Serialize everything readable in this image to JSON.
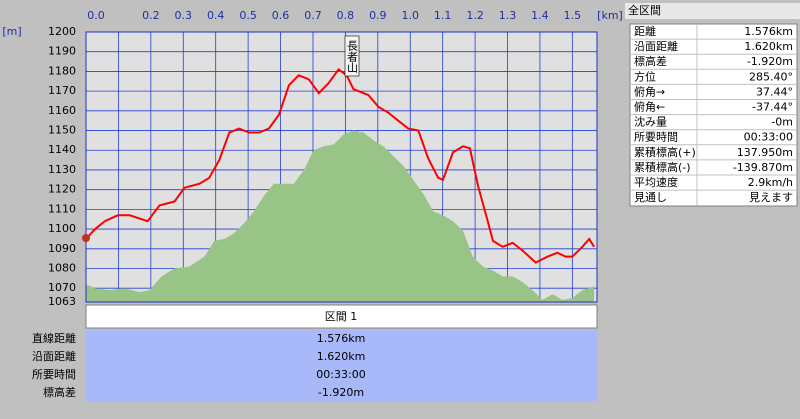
{
  "chart_data": {
    "type": "line",
    "xlabel": "[km]",
    "ylabel": "[m]",
    "annotation": "長者山",
    "xlim": [
      0,
      1.576
    ],
    "ylim": [
      1063,
      1200
    ],
    "grid": true,
    "xticks": [
      {
        "value": 0,
        "label": "0.0"
      },
      {
        "value": 0.1,
        "label": null
      },
      0.2,
      0.3,
      0.4,
      0.5,
      0.6,
      0.7,
      0.8,
      0.9,
      {
        "value": 1,
        "label": "1.0"
      },
      1.1,
      1.2,
      1.3,
      1.4,
      1.5
    ],
    "yticks": [
      1063,
      1070,
      1080,
      1090,
      1100,
      1110,
      1120,
      1130,
      1140,
      1150,
      1160,
      1170,
      1180,
      1190,
      1200
    ],
    "series": [
      {
        "type": "area",
        "color": "#98c488",
        "x": [
          0,
          0.028,
          0.074,
          0.12,
          0.166,
          0.196,
          0.233,
          0.273,
          0.319,
          0.365,
          0.396,
          0.427,
          0.457,
          0.488,
          0.518,
          0.549,
          0.58,
          0.61,
          0.641,
          0.672,
          0.702,
          0.733,
          0.764,
          0.794,
          0.825,
          0.856,
          0.887,
          0.917,
          0.948,
          0.979,
          1.009,
          1.04,
          1.071,
          1.101,
          1.132,
          1.163,
          1.193,
          1.224,
          1.255,
          1.285,
          1.316,
          1.347,
          1.377,
          1.408,
          1.439,
          1.469,
          1.5,
          1.531,
          1.567
        ],
        "values": [
          1072,
          1070,
          1069,
          1070,
          1068,
          1069,
          1076,
          1080,
          1081,
          1086,
          1094,
          1095,
          1098,
          1103,
          1109,
          1117,
          1123,
          1123,
          1123,
          1130,
          1140,
          1142,
          1143,
          1148,
          1150,
          1149,
          1145,
          1142,
          1137,
          1132,
          1125,
          1118,
          1109,
          1107,
          1104,
          1099,
          1086,
          1081,
          1079,
          1076,
          1076,
          1073,
          1069,
          1064,
          1067,
          1064,
          1065,
          1069,
          1071
        ]
      },
      {
        "type": "line",
        "color": "#ff0000",
        "x": [
          0,
          0.028,
          0.058,
          0.098,
          0.135,
          0.19,
          0.227,
          0.273,
          0.304,
          0.35,
          0.38,
          0.411,
          0.442,
          0.472,
          0.503,
          0.534,
          0.564,
          0.595,
          0.626,
          0.656,
          0.687,
          0.718,
          0.748,
          0.779,
          0.804,
          0.825,
          0.871,
          0.902,
          0.933,
          0.963,
          0.994,
          1.025,
          1.055,
          1.086,
          1.101,
          1.132,
          1.163,
          1.184,
          1.209,
          1.239,
          1.255,
          1.285,
          1.316,
          1.347,
          1.387,
          1.423,
          1.454,
          1.479,
          1.5,
          1.531,
          1.552,
          1.567
        ],
        "values": [
          1095,
          1100,
          1104,
          1107,
          1107,
          1104,
          1112,
          1114,
          1121,
          1123,
          1126,
          1135,
          1149,
          1151,
          1149,
          1149,
          1151,
          1158,
          1173,
          1178,
          1176,
          1169,
          1174,
          1181,
          1178,
          1171,
          1168,
          1162,
          1159,
          1155,
          1151,
          1150,
          1136,
          1126,
          1125,
          1139,
          1142,
          1141,
          1122,
          1104,
          1094,
          1091,
          1093,
          1089,
          1083,
          1086,
          1088,
          1086,
          1086,
          1091,
          1095,
          1091
        ]
      }
    ]
  },
  "section": {
    "title": "区間 1",
    "rows": [
      {
        "label": "直線距離",
        "value": "1.576km"
      },
      {
        "label": "沿面距離",
        "value": "1.620km"
      },
      {
        "label": "所要時間",
        "value": "00:33:00"
      },
      {
        "label": "標高差",
        "value": "-1.920m"
      }
    ]
  },
  "summary": {
    "title": "全区間",
    "rows": [
      [
        "距離",
        "1.576km"
      ],
      [
        "沿面距離",
        "1.620km"
      ],
      [
        "標高差",
        "-1.920m"
      ],
      [
        "方位",
        "285.40°"
      ],
      [
        "俯角→",
        "37.44°"
      ],
      [
        "俯角←",
        "-37.44°"
      ],
      [
        "沈み量",
        "-0m"
      ],
      [
        "所要時間",
        "00:33:00"
      ],
      [
        "累積標高(+)",
        "137.950m"
      ],
      [
        "累積標高(-)",
        "-139.870m"
      ],
      [
        "平均速度",
        "2.9km/h"
      ],
      [
        "見通し",
        "見えます"
      ]
    ]
  }
}
